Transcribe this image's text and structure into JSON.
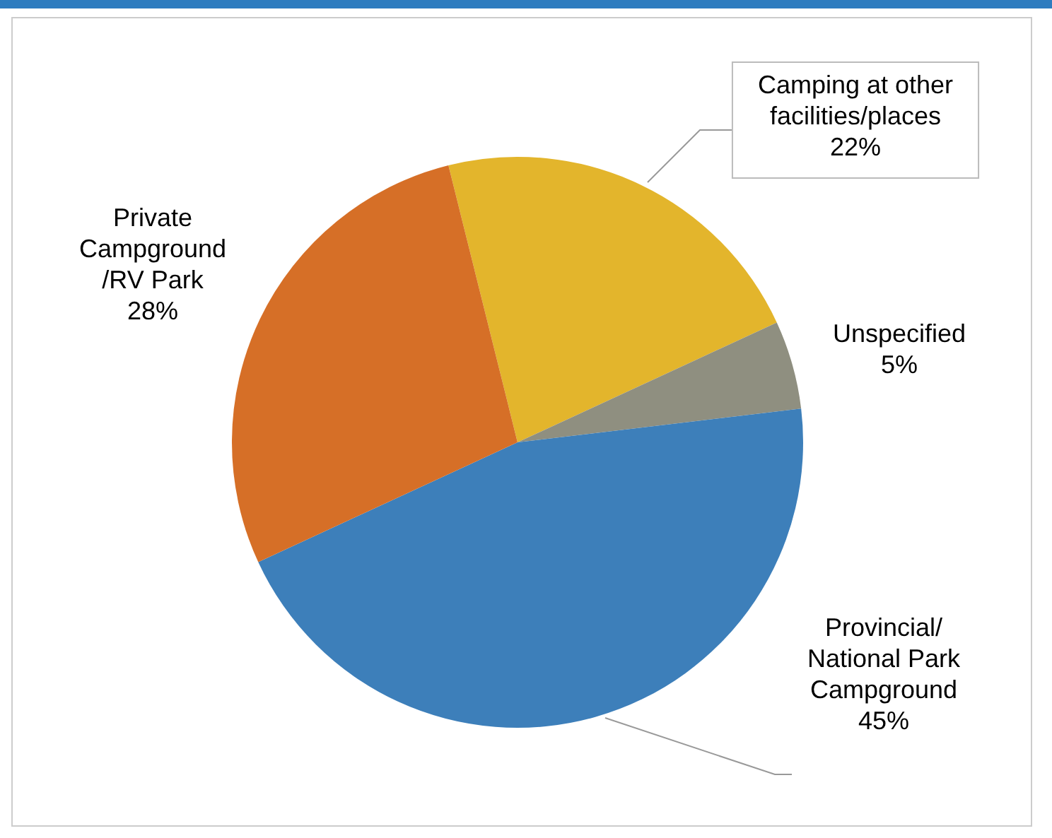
{
  "chart_data": {
    "type": "pie",
    "categories": [
      "Camping at other facilities/places",
      "Unspecified",
      "Provincial/ National Park Campground",
      "Private Campground /RV Park"
    ],
    "values": [
      22,
      5,
      45,
      28
    ],
    "colors": [
      "#e3b52c",
      "#8f8f80",
      "#3d7fba",
      "#d66f27"
    ],
    "value_labels": [
      "22%",
      "5%",
      "45%",
      "28%"
    ],
    "legend": false
  }
}
